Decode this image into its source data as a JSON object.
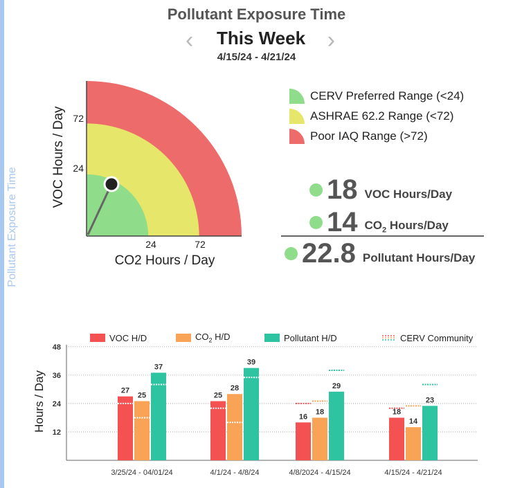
{
  "page": {
    "title": "Pollutant Exposure Time",
    "side_label": "Pollutant Exposure Time",
    "period_label": "This Week",
    "date_range": "4/15/24 - 4/21/24",
    "prev_icon": "chevron-left-icon",
    "next_icon": "chevron-right-icon"
  },
  "colors": {
    "green": "#8fdc8b",
    "yellow": "#e6e66b",
    "red": "#ee6b6b",
    "voc": "#f45252",
    "co2": "#f9a356",
    "pollutant": "#2ec4a2",
    "side": "#a9c8f0"
  },
  "gauge_legend": [
    {
      "label": "CERV Preferred Range (<24)",
      "color": "#8fdc8b"
    },
    {
      "label": "ASHRAE 62.2 Range (<72)",
      "color": "#e6e66b"
    },
    {
      "label": "Poor IAQ Range (>72)",
      "color": "#ee6b6b"
    }
  ],
  "stats": {
    "voc": {
      "value": "18",
      "label": "VOC Hours/Day"
    },
    "co2": {
      "value": "14",
      "label_prefix": "CO",
      "label_sub": "2",
      "label_suffix": " Hours/Day"
    },
    "pollutant": {
      "value": "22.8",
      "label": "Pollutant Hours/Day"
    }
  },
  "bar_legend": {
    "voc": "VOC H/D",
    "co2_prefix": "CO",
    "co2_sub": "2",
    "co2_suffix": " H/D",
    "pollutant": "Pollutant H/D",
    "community": "CERV Community"
  },
  "chart_data": [
    {
      "type": "scatter",
      "title": "",
      "xlabel": "CO2 Hours / Day",
      "ylabel": "VOC Hours / Day",
      "xticks": [
        24,
        72
      ],
      "yticks": [
        24,
        72
      ],
      "xlim": [
        0,
        100
      ],
      "ylim": [
        0,
        100
      ],
      "bands": [
        {
          "name": "CERV Preferred Range (<24)",
          "max": 39.8
        },
        {
          "name": "ASHRAE 62.2 Range (<72)",
          "max": 72.6
        },
        {
          "name": "Poor IAQ Range (>72)",
          "max": 100
        }
      ],
      "point": {
        "x": 14,
        "y": 18
      }
    },
    {
      "type": "bar",
      "title": "",
      "xlabel": "",
      "ylabel": "Hours / Day",
      "ylim": [
        0,
        52
      ],
      "yticks": [
        12,
        24,
        36,
        48
      ],
      "grid": true,
      "legend": "top",
      "categories": [
        "3/25/24 - 04/01/24",
        "4/1/24 - 4/8/24",
        "4/8/2024 - 4/15/24",
        "4/15/24 - 4/21/24"
      ],
      "series": [
        {
          "name": "VOC H/D",
          "values": [
            27,
            25,
            16,
            18
          ],
          "community": [
            24,
            22,
            24,
            22
          ]
        },
        {
          "name": "CO2 H/D",
          "values": [
            25,
            28,
            18,
            14
          ],
          "community": [
            18,
            16,
            25,
            23
          ]
        },
        {
          "name": "Pollutant H/D",
          "values": [
            37,
            39,
            29,
            23
          ],
          "community": [
            32,
            35,
            38,
            32
          ]
        }
      ],
      "community_label": "CERV Community"
    }
  ]
}
